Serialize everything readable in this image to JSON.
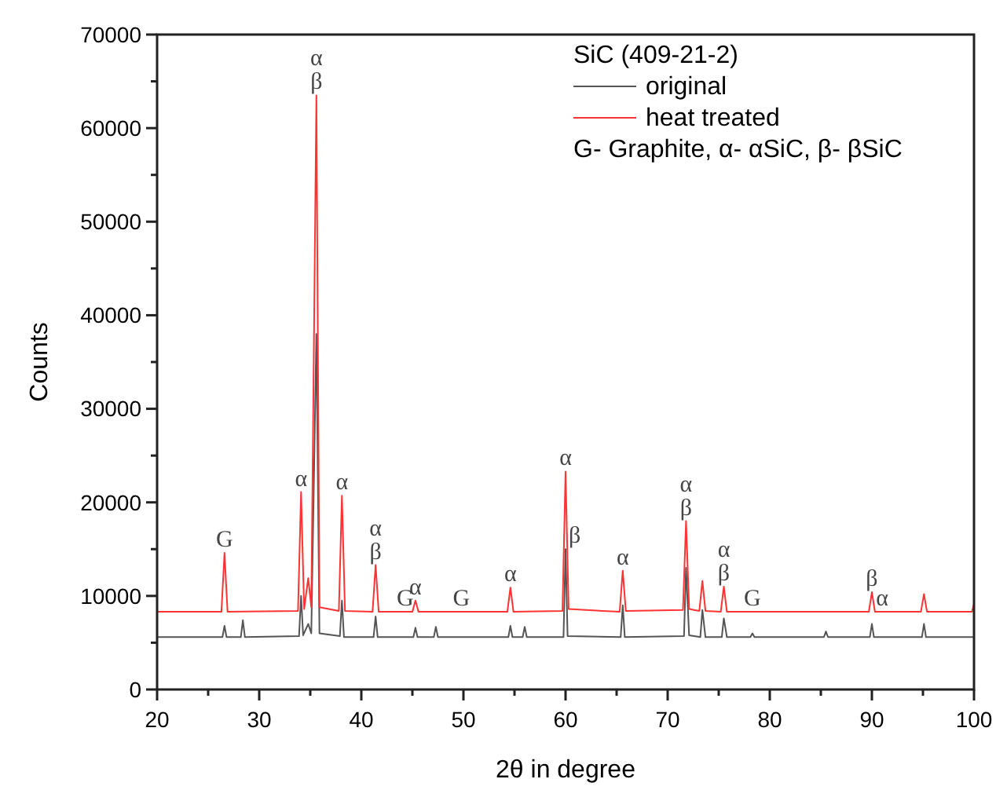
{
  "chart_data": {
    "type": "line",
    "xlabel": "2θ in degree",
    "ylabel": "Counts",
    "legend_title": "SiC (409-21-2)",
    "legend": "top right",
    "grid": false,
    "marker": "none",
    "line_style": "solid",
    "xlim": [
      20,
      100
    ],
    "ylim": [
      0,
      70000
    ],
    "xticks": [
      20,
      {
        "value": 25,
        "label": null
      },
      30,
      {
        "value": 35,
        "label": null
      },
      40,
      {
        "value": 45,
        "label": null
      },
      50,
      {
        "value": 55,
        "label": null
      },
      60,
      {
        "value": 65,
        "label": null
      },
      70,
      {
        "value": 75,
        "label": null
      },
      80,
      {
        "value": 85,
        "label": null
      },
      90,
      {
        "value": 95,
        "label": null
      },
      100
    ],
    "yticks": [
      0,
      {
        "value": 5000,
        "label": null
      },
      10000,
      {
        "value": 15000,
        "label": null
      },
      20000,
      {
        "value": 25000,
        "label": null
      },
      30000,
      {
        "value": 35000,
        "label": null
      },
      40000,
      {
        "value": 45000,
        "label": null
      },
      50000,
      {
        "value": 55000,
        "label": null
      },
      60000,
      {
        "value": 65000,
        "label": null
      },
      70000
    ],
    "series": [
      {
        "name": "original",
        "color": "#555555",
        "x": [
          20,
          26.4,
          26.6,
          26.8,
          28.2,
          28.4,
          28.6,
          33.9,
          34.1,
          34.3,
          34.8,
          35.1,
          35.6,
          35.9,
          37.9,
          38.1,
          38.3,
          41.2,
          41.4,
          41.6,
          45.1,
          45.3,
          45.5,
          47.1,
          47.3,
          47.5,
          54.4,
          54.6,
          54.8,
          55.8,
          56.0,
          56.2,
          59.8,
          60.0,
          60.2,
          65.4,
          65.6,
          65.8,
          71.6,
          71.8,
          72.1,
          73.2,
          73.4,
          73.7,
          75.3,
          75.5,
          75.8,
          78.1,
          78.3,
          78.5,
          85.3,
          85.5,
          85.7,
          89.8,
          90.0,
          90.2,
          94.9,
          95.1,
          95.3,
          100
        ],
        "values": [
          5600,
          5600,
          6800,
          5600,
          5600,
          7400,
          5600,
          5700,
          10000,
          5800,
          7000,
          6000,
          38000,
          6000,
          5700,
          9500,
          5600,
          5600,
          7800,
          5600,
          5600,
          6600,
          5600,
          5600,
          6700,
          5600,
          5600,
          6800,
          5600,
          5600,
          6700,
          5600,
          5600,
          15000,
          5700,
          5600,
          9000,
          5600,
          5700,
          13000,
          5800,
          5600,
          8500,
          5600,
          5600,
          7600,
          5600,
          5600,
          6000,
          5600,
          5600,
          6200,
          5600,
          5600,
          7000,
          5600,
          5600,
          7000,
          5600,
          5600
        ]
      },
      {
        "name": "heat treated",
        "color": "#ff3333",
        "x": [
          20,
          26.3,
          26.6,
          26.9,
          33.8,
          34.1,
          34.4,
          34.8,
          35.1,
          35.6,
          35.9,
          37.8,
          38.1,
          38.4,
          41.1,
          41.4,
          41.7,
          45.0,
          45.3,
          45.6,
          54.3,
          54.6,
          54.9,
          59.7,
          60.0,
          60.3,
          65.3,
          65.6,
          65.9,
          71.5,
          71.8,
          72.1,
          73.1,
          73.4,
          73.7,
          75.2,
          75.5,
          75.8,
          89.7,
          90.0,
          90.3,
          94.8,
          95.1,
          95.4,
          99.8,
          100
        ],
        "values": [
          8300,
          8300,
          14600,
          8300,
          8400,
          21100,
          8600,
          11900,
          8800,
          63500,
          8800,
          8400,
          20700,
          8400,
          8300,
          13300,
          8300,
          8300,
          9500,
          8300,
          8300,
          10900,
          8300,
          8400,
          23300,
          8600,
          8300,
          12700,
          8400,
          8500,
          18000,
          8600,
          8400,
          11600,
          8400,
          8300,
          11000,
          8300,
          8300,
          10400,
          8300,
          8300,
          10200,
          8300,
          8300,
          9200
        ]
      }
    ],
    "annotations": [
      "G- Graphite, α- αSiC, β- βSiC",
      {
        "text": "G",
        "x": 26.6,
        "y": 14600
      },
      {
        "text": "α",
        "x": 34.1,
        "y": 21100
      },
      {
        "text": "α",
        "x": 35.6,
        "y": 63500
      },
      {
        "text": "β",
        "x": 35.6,
        "y": 63500
      },
      {
        "text": "α",
        "x": 38.1,
        "y": 20700
      },
      {
        "text": "α",
        "x": 41.4,
        "y": 13300
      },
      {
        "text": "β",
        "x": 41.4,
        "y": 13300
      },
      {
        "text": "G",
        "x": 44.3,
        "y": 8300
      },
      {
        "text": "α",
        "x": 45.3,
        "y": 9500
      },
      {
        "text": "G",
        "x": 49.8,
        "y": 8300
      },
      {
        "text": "α",
        "x": 54.6,
        "y": 10900
      },
      {
        "text": "α",
        "x": 60.0,
        "y": 23300
      },
      {
        "text": "β",
        "x": 60.9,
        "y": 15000
      },
      {
        "text": "α",
        "x": 65.6,
        "y": 12700
      },
      {
        "text": "α",
        "x": 71.8,
        "y": 18000
      },
      {
        "text": "β",
        "x": 71.8,
        "y": 18000
      },
      {
        "text": "α",
        "x": 75.5,
        "y": 11000
      },
      {
        "text": "β",
        "x": 75.5,
        "y": 11000
      },
      {
        "text": "G",
        "x": 78.3,
        "y": 8300
      },
      {
        "text": "β",
        "x": 90.0,
        "y": 10400
      },
      {
        "text": "α",
        "x": 91.0,
        "y": 8300
      }
    ]
  }
}
